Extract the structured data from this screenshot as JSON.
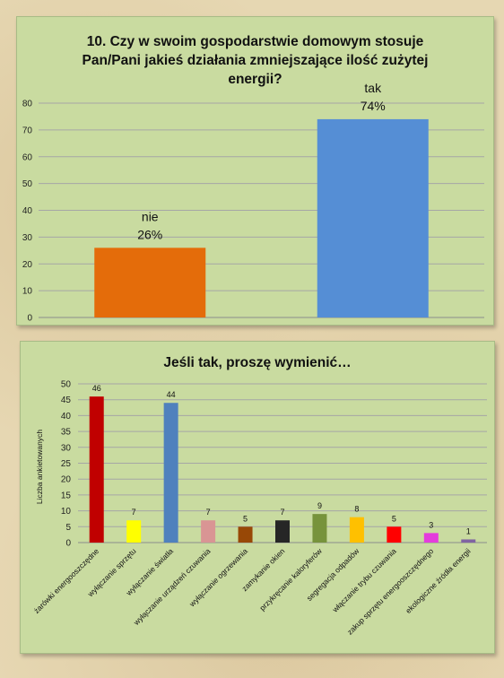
{
  "chart_data": [
    {
      "type": "bar",
      "title": "10. Czy w swoim gospodarstwie domowym stosuje\nPan/Pani jakieś działania zmniejszające ilość zużytej\nenergii?",
      "categories": [
        "nie",
        "tak"
      ],
      "values": [
        26,
        74
      ],
      "data_labels": [
        "26%",
        "74%"
      ],
      "colors": [
        "#e46c0a",
        "#558ed5"
      ],
      "ylim": [
        0,
        80
      ],
      "yticks": [
        0,
        10,
        20,
        30,
        40,
        50,
        60,
        70,
        80
      ],
      "grid": true,
      "xlabel": "",
      "ylabel": ""
    },
    {
      "type": "bar",
      "title": "Jeśli tak, proszę wymienić…",
      "ylabel": "Liczba ankietowanych",
      "xlabel": "",
      "categories": [
        "żarówki energooszczędne",
        "wyłączanie sprzętu",
        "wyłączanie światła",
        "wyłączanie urządzeń czuwania",
        "wyłączanie ogrzewania",
        "zamykanie okien",
        "przykręcanie kaloryferów",
        "segregacja odpadów",
        "włączanie trybu czuwania",
        "zakup sprzętu energooszczędnego",
        "ekologiczne źródła energii"
      ],
      "values": [
        46,
        7,
        44,
        7,
        5,
        7,
        9,
        8,
        5,
        3,
        1
      ],
      "colors": [
        "#c00000",
        "#ffff00",
        "#4f81bd",
        "#d99594",
        "#984806",
        "#262626",
        "#77933c",
        "#ffc000",
        "#ff0000",
        "#e43cdc",
        "#8064a2"
      ],
      "ylim": [
        0,
        50
      ],
      "yticks": [
        0,
        5,
        10,
        15,
        20,
        25,
        30,
        35,
        40,
        45,
        50
      ],
      "grid": true
    }
  ]
}
